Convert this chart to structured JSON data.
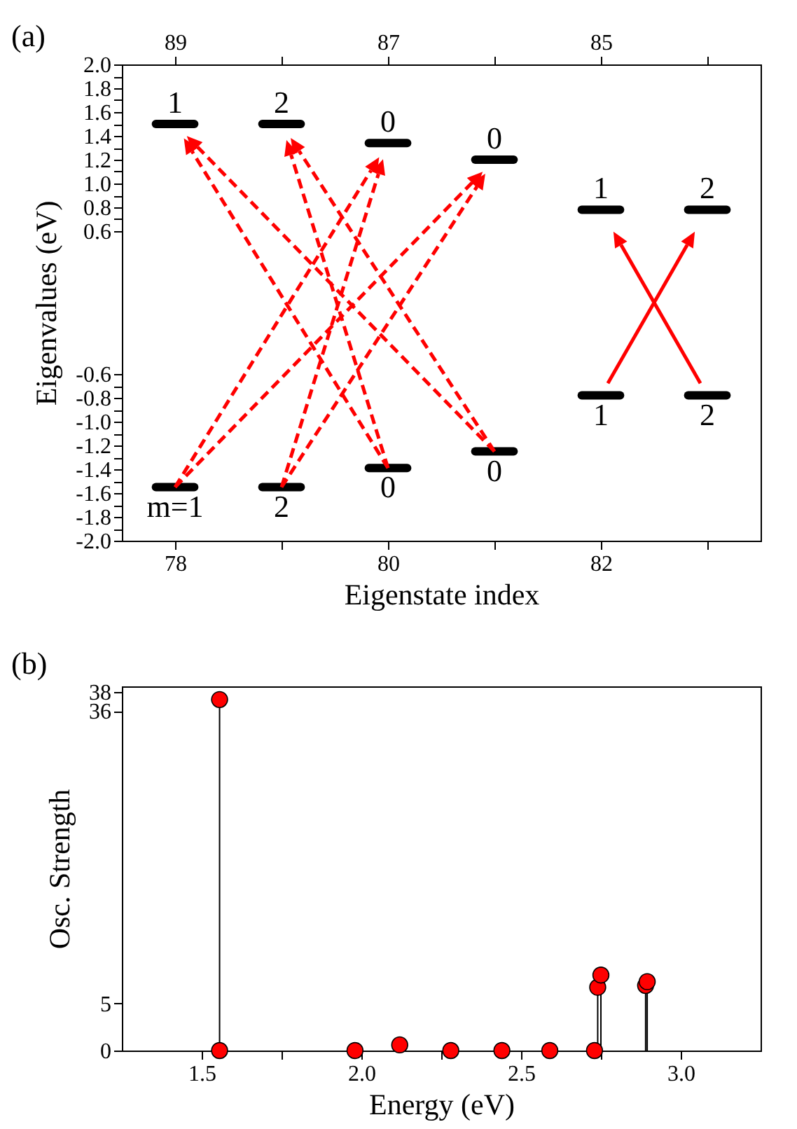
{
  "chart_data": [
    {
      "title": "(a)",
      "xlabel": "Eigenstate index",
      "ylabel": "Eigenvalues (eV)",
      "xlim": [
        77.5,
        83.5
      ],
      "xticks": [
        78,
        {
          "value": 79,
          "label": null
        },
        80,
        {
          "value": 81,
          "label": null
        },
        82,
        {
          "value": 83,
          "label": null
        }
      ],
      "x2lim": [
        89.5,
        83.5
      ],
      "x2ticks": [
        89,
        {
          "value": 88,
          "label": null
        },
        87,
        {
          "value": 86,
          "label": null
        },
        85,
        {
          "value": 84,
          "label": null
        }
      ],
      "ylim": [
        -2.0,
        2.0
      ],
      "yticks": [
        {
          "value": -2,
          "label": "-2.0"
        },
        {
          "value": -1.9,
          "label": null
        },
        {
          "value": -1.8,
          "label": "-1.8"
        },
        {
          "value": -1.7,
          "label": null
        },
        {
          "value": -1.6,
          "label": "-1.6"
        },
        {
          "value": -1.5,
          "label": null
        },
        {
          "value": -1.4,
          "label": "-1.4"
        },
        {
          "value": -1.3,
          "label": null
        },
        {
          "value": -1.2,
          "label": "-1.2"
        },
        {
          "value": -1.1,
          "label": null
        },
        {
          "value": -1,
          "label": "-1.0"
        },
        {
          "value": -0.9,
          "label": null
        },
        {
          "value": -0.8,
          "label": "-0.8"
        },
        {
          "value": -0.7,
          "label": null
        },
        {
          "value": -0.6,
          "label": "-0.6"
        },
        {
          "value": 0.6,
          "label": "0.6"
        },
        {
          "value": 0.7,
          "label": null
        },
        {
          "value": 0.8,
          "label": "0.8"
        },
        {
          "value": 0.9,
          "label": null
        },
        {
          "value": 1,
          "label": "1.0"
        },
        {
          "value": 1.1,
          "label": null
        },
        {
          "value": 1.2,
          "label": "1.2"
        },
        {
          "value": 1.3,
          "label": null
        },
        {
          "value": 1.4,
          "label": "1.4"
        },
        {
          "value": 1.5,
          "label": null
        },
        {
          "value": 1.6,
          "label": "1.6"
        },
        {
          "value": 1.7,
          "label": null
        },
        {
          "value": 1.8,
          "label": "1.8"
        },
        {
          "value": 1.9,
          "label": null
        },
        {
          "value": 2,
          "label": "2.0"
        }
      ],
      "type": "line",
      "series": [
        {
          "color": "#000000",
          "x": [
            77.82,
            78.18
          ],
          "values": [
            1.5,
            1.5
          ]
        },
        {
          "color": "#000000",
          "x": [
            78.82,
            79.18
          ],
          "values": [
            1.5,
            1.5
          ]
        },
        {
          "color": "#000000",
          "x": [
            79.82,
            80.18
          ],
          "values": [
            1.34,
            1.34
          ]
        },
        {
          "color": "#000000",
          "x": [
            80.82,
            81.18
          ],
          "values": [
            1.2,
            1.2
          ]
        },
        {
          "color": "#000000",
          "x": [
            81.82,
            82.18
          ],
          "values": [
            0.78,
            0.78
          ]
        },
        {
          "color": "#000000",
          "x": [
            82.82,
            83.18
          ],
          "values": [
            0.78,
            0.78
          ]
        },
        {
          "color": "#000000",
          "x": [
            77.82,
            78.18
          ],
          "values": [
            -1.55,
            -1.55
          ]
        },
        {
          "color": "#000000",
          "x": [
            78.82,
            79.18
          ],
          "values": [
            -1.55,
            -1.55
          ]
        },
        {
          "color": "#000000",
          "x": [
            79.82,
            80.18
          ],
          "values": [
            -1.39,
            -1.39
          ]
        },
        {
          "color": "#000000",
          "x": [
            80.82,
            81.18
          ],
          "values": [
            -1.25,
            -1.25
          ]
        },
        {
          "color": "#000000",
          "x": [
            81.82,
            82.18
          ],
          "values": [
            -0.78,
            -0.78
          ]
        },
        {
          "color": "#000000",
          "x": [
            82.82,
            83.18
          ],
          "values": [
            -0.78,
            -0.78
          ]
        }
      ],
      "annotations": [
        {
          "text": "1",
          "x": 78,
          "y": 1.5
        },
        {
          "text": "2",
          "x": 79,
          "y": 1.5
        },
        {
          "text": "0",
          "x": 80,
          "y": 1.34
        },
        {
          "text": "0",
          "x": 81,
          "y": 1.2
        },
        {
          "text": "1",
          "x": 82,
          "y": 0.78
        },
        {
          "text": "2",
          "x": 83,
          "y": 0.78
        },
        {
          "text": "m=1",
          "x": 78,
          "y": -1.55
        },
        {
          "text": "2",
          "x": 79,
          "y": -1.55
        },
        {
          "text": "0",
          "x": 80,
          "y": -1.39
        },
        {
          "text": "0",
          "x": 81,
          "y": -1.25
        },
        {
          "text": "1",
          "x": 82,
          "y": -0.78
        },
        {
          "text": "2",
          "x": 83,
          "y": -0.78
        }
      ]
    },
    {
      "type": "lollipop",
      "title": "(b)",
      "xlabel": "Energy (eV)",
      "ylabel": "Osc. Strength",
      "xlim": [
        1.25,
        3.25
      ],
      "xticks": [
        1.5,
        {
          "value": 1.75,
          "label": null
        },
        {
          "value": 2,
          "label": "2.0"
        },
        {
          "value": 2.25,
          "label": null
        },
        2.5,
        {
          "value": 2.75,
          "label": null
        },
        {
          "value": 3,
          "label": "3.0"
        }
      ],
      "ylim": [
        0,
        38.6
      ],
      "yticks": [
        0,
        5,
        36,
        38
      ],
      "color": "#ff0000",
      "x": [
        1.556,
        1.556,
        1.98,
        2.12,
        2.28,
        2.44,
        2.59,
        2.73,
        2.74,
        2.75,
        2.89,
        2.895
      ],
      "values": [
        37.2,
        0,
        0,
        0.6,
        0,
        0,
        0,
        0,
        6.7,
        8.0,
        6.9,
        7.3
      ]
    }
  ]
}
